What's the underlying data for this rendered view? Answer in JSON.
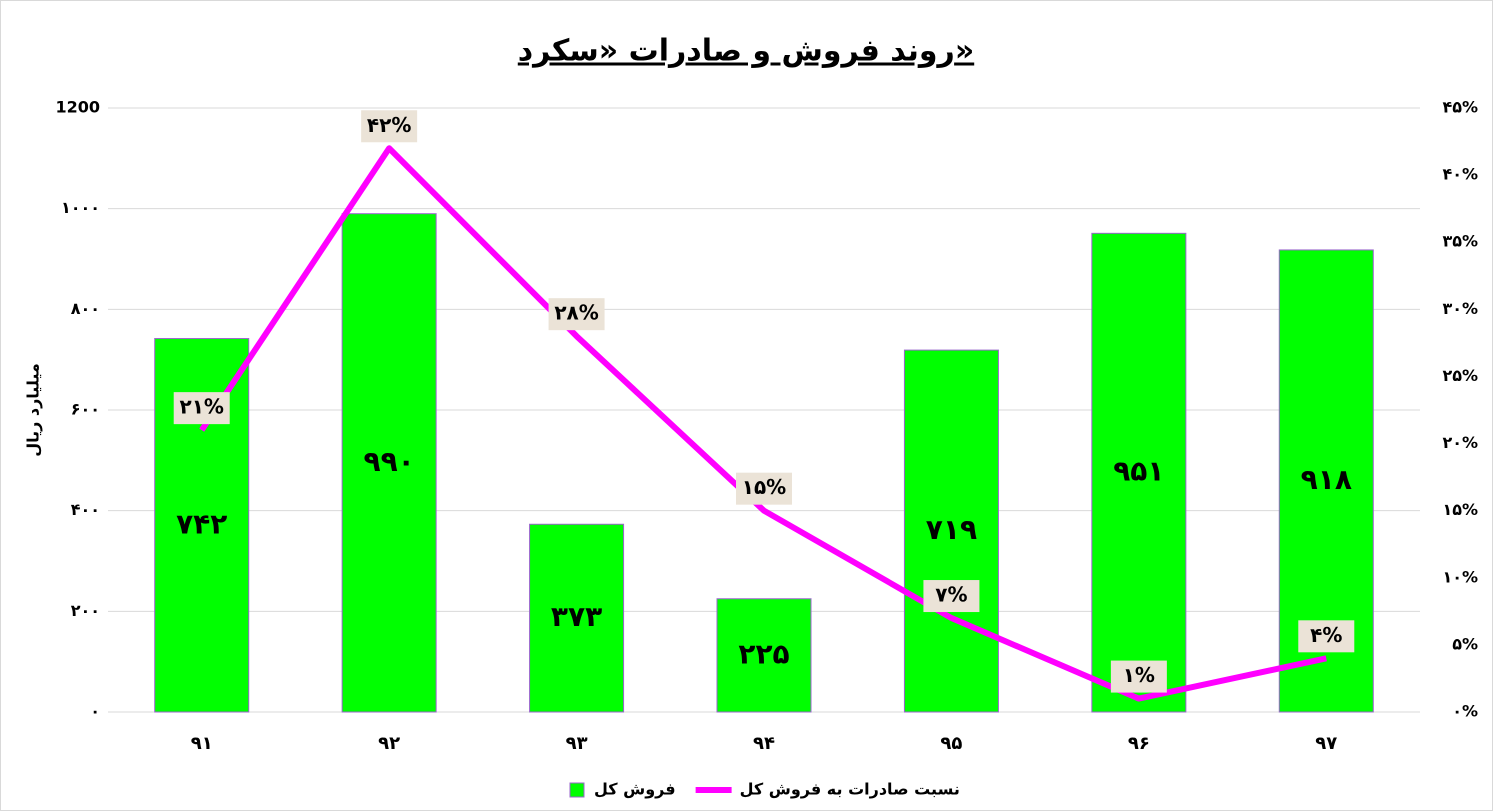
{
  "chart_data": {
    "type": "bar",
    "title": "روند فروش و صادرات «سکرد»",
    "y_label": "میلیارد ریال",
    "categories": [
      "۹۱",
      "۹۲",
      "۹۳",
      "۹۴",
      "۹۵",
      "۹۶",
      "۹۷"
    ],
    "series": [
      {
        "name": "فروش کل",
        "type": "bar",
        "color": "#00ff00",
        "values": [
          742,
          990,
          373,
          225,
          719,
          951,
          918
        ],
        "value_labels": [
          "۷۴۲",
          "۹۹۰",
          "۳۷۳",
          "۲۲۵",
          "۷۱۹",
          "۹۵۱",
          "۹۱۸"
        ]
      },
      {
        "name": "نسبت صادرات به فروش کل",
        "type": "line",
        "axis": "y2",
        "color": "#ff00ff",
        "values": [
          21,
          42,
          28,
          15,
          7,
          1,
          4
        ],
        "value_labels": [
          "۲۱%",
          "۴۲%",
          "۲۸%",
          "۱۵%",
          "۷%",
          "۱%",
          "۴%"
        ]
      }
    ],
    "ylim": [
      0,
      1200
    ],
    "yticks": [
      {
        "value": 0,
        "label": "۰"
      },
      {
        "value": 200,
        "label": "۲۰۰"
      },
      {
        "value": 400,
        "label": "۴۰۰"
      },
      {
        "value": 600,
        "label": "۶۰۰"
      },
      {
        "value": 800,
        "label": "۸۰۰"
      },
      {
        "value": 1000,
        "label": "۱۰۰۰"
      },
      {
        "value": 1200,
        "label": "1200"
      }
    ],
    "y2lim": [
      0,
      45
    ],
    "y2ticks": [
      {
        "value": 0,
        "label": "۰%"
      },
      {
        "value": 5,
        "label": "۵%"
      },
      {
        "value": 10,
        "label": "۱۰%"
      },
      {
        "value": 15,
        "label": "۱۵%"
      },
      {
        "value": 20,
        "label": "۲۰%"
      },
      {
        "value": 25,
        "label": "۲۵%"
      },
      {
        "value": 30,
        "label": "۳۰%"
      },
      {
        "value": 35,
        "label": "۳۵%"
      },
      {
        "value": 40,
        "label": "۴۰%"
      },
      {
        "value": 45,
        "label": "۴۵%"
      }
    ],
    "grid": true,
    "legend": "bottom"
  }
}
